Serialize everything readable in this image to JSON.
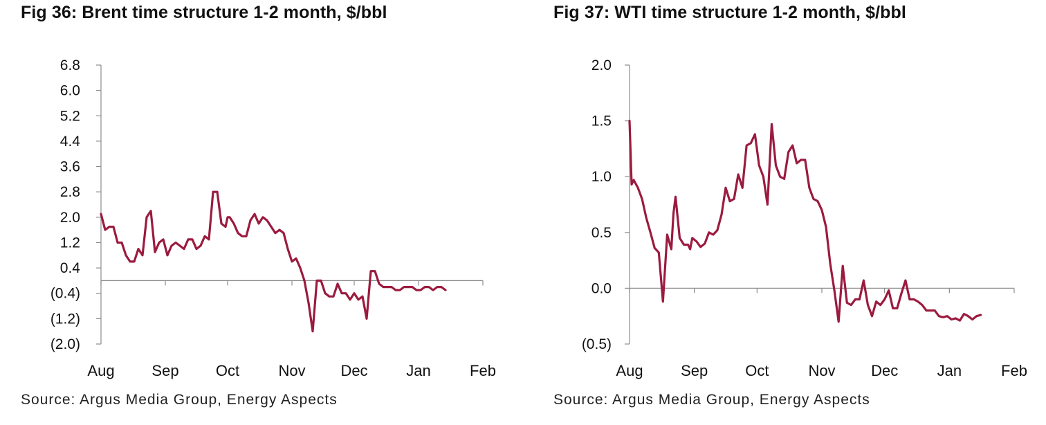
{
  "figures": [
    {
      "title": "Fig 36:  Brent time structure 1-2 month, $/bbl",
      "source": "Source: Argus Media Group, Energy Aspects"
    },
    {
      "title": "Fig 37:  WTI time structure 1-2 month, $/bbl",
      "source": "Source: Argus Media Group, Energy Aspects"
    }
  ],
  "chart_data": [
    {
      "type": "line",
      "title": "Fig 36:  Brent time structure 1-2 month, $/bbl",
      "xlabel": "",
      "ylabel": "",
      "x_tick_labels": [
        "Aug",
        "Sep",
        "Oct",
        "Nov",
        "Dec",
        "Jan",
        "Feb"
      ],
      "y_ticks": [
        6.8,
        6.0,
        5.2,
        4.4,
        3.6,
        2.8,
        2.0,
        1.2,
        0.4,
        -0.4,
        -1.2,
        -2.0
      ],
      "y_tick_labels": [
        "6.8",
        "6.0",
        "5.2",
        "4.4",
        "3.6",
        "2.8",
        "2.0",
        "1.2",
        "0.4",
        "(0.4)",
        "(1.2)",
        "(2.0)"
      ],
      "ylim": [
        -2.0,
        6.8
      ],
      "xlim": [
        "Aug",
        "Feb"
      ],
      "line_color": "#9b1b3f",
      "grid": false,
      "series": [
        {
          "x": [
            "Aug 1",
            "Aug 3",
            "Aug 5",
            "Aug 7",
            "Aug 9",
            "Aug 11",
            "Aug 13",
            "Aug 15",
            "Aug 17",
            "Aug 19",
            "Aug 21",
            "Aug 23",
            "Aug 25",
            "Aug 27",
            "Aug 29",
            "Aug 31",
            "Sep 2",
            "Sep 4",
            "Sep 6",
            "Sep 8",
            "Sep 10",
            "Sep 12",
            "Sep 14",
            "Sep 16",
            "Sep 18",
            "Sep 20",
            "Sep 22",
            "Sep 24",
            "Sep 26",
            "Sep 28",
            "Sep 30",
            "Oct 1",
            "Oct 2",
            "Oct 4",
            "Oct 6",
            "Oct 8",
            "Oct 10",
            "Oct 12",
            "Oct 14",
            "Oct 16",
            "Oct 18",
            "Oct 20",
            "Oct 22",
            "Oct 24",
            "Oct 26",
            "Oct 28",
            "Oct 30",
            "Nov 1",
            "Nov 3",
            "Nov 5",
            "Nov 7",
            "Nov 9",
            "Nov 11",
            "Nov 13",
            "Nov 15",
            "Nov 17",
            "Nov 19",
            "Nov 21",
            "Nov 23",
            "Nov 25",
            "Nov 27",
            "Nov 29",
            "Dec 1",
            "Dec 3",
            "Dec 5",
            "Dec 7",
            "Dec 9",
            "Dec 11",
            "Dec 13",
            "Dec 15",
            "Dec 17",
            "Dec 19",
            "Dec 21",
            "Dec 23",
            "Dec 25",
            "Dec 27",
            "Dec 29",
            "Dec 31",
            "Jan 2",
            "Jan 4",
            "Jan 6",
            "Jan 8",
            "Jan 10",
            "Jan 12",
            "Jan 14"
          ],
          "y": [
            2.1,
            1.6,
            1.7,
            1.7,
            1.2,
            1.2,
            0.8,
            0.6,
            0.6,
            1.0,
            0.8,
            2.0,
            2.2,
            0.9,
            1.2,
            1.3,
            0.8,
            1.1,
            1.2,
            1.1,
            1.0,
            1.3,
            1.3,
            1.0,
            1.1,
            1.4,
            1.3,
            2.8,
            2.8,
            1.8,
            1.7,
            2.0,
            2.0,
            1.8,
            1.5,
            1.4,
            1.4,
            1.9,
            2.1,
            1.8,
            2.0,
            1.9,
            1.7,
            1.5,
            1.6,
            1.5,
            1.0,
            0.6,
            0.7,
            0.4,
            0.0,
            -0.7,
            -1.6,
            0.0,
            0.0,
            -0.4,
            -0.5,
            -0.5,
            -0.1,
            -0.4,
            -0.4,
            -0.6,
            -0.4,
            -0.6,
            -0.5,
            -1.2,
            0.3,
            0.3,
            -0.1,
            -0.2,
            -0.2,
            -0.2,
            -0.3,
            -0.3,
            -0.2,
            -0.2,
            -0.2,
            -0.3,
            -0.3,
            -0.2,
            -0.2,
            -0.3,
            -0.2,
            -0.2,
            -0.3
          ]
        }
      ]
    },
    {
      "type": "line",
      "title": "Fig 37:  WTI time structure 1-2 month, $/bbl",
      "xlabel": "",
      "ylabel": "",
      "x_tick_labels": [
        "Aug",
        "Sep",
        "Oct",
        "Nov",
        "Dec",
        "Jan",
        "Feb"
      ],
      "y_ticks": [
        2.0,
        1.5,
        1.0,
        0.5,
        0.0,
        -0.5
      ],
      "y_tick_labels": [
        "2.0",
        "1.5",
        "1.0",
        "0.5",
        "0.0",
        "(0.5)"
      ],
      "ylim": [
        -0.5,
        2.0
      ],
      "xlim": [
        "Aug",
        "Feb"
      ],
      "line_color": "#9b1b3f",
      "grid": false,
      "series": [
        {
          "x": [
            "Aug 1",
            "Aug 2",
            "Aug 3",
            "Aug 5",
            "Aug 7",
            "Aug 9",
            "Aug 11",
            "Aug 13",
            "Aug 15",
            "Aug 17",
            "Aug 19",
            "Aug 21",
            "Aug 22",
            "Aug 23",
            "Aug 25",
            "Aug 27",
            "Aug 29",
            "Aug 30",
            "Aug 31",
            "Sep 2",
            "Sep 4",
            "Sep 6",
            "Sep 8",
            "Sep 10",
            "Sep 12",
            "Sep 14",
            "Sep 16",
            "Sep 18",
            "Sep 20",
            "Sep 22",
            "Sep 24",
            "Sep 26",
            "Sep 28",
            "Sep 30",
            "Oct 2",
            "Oct 4",
            "Oct 6",
            "Oct 8",
            "Oct 10",
            "Oct 12",
            "Oct 14",
            "Oct 16",
            "Oct 18",
            "Oct 20",
            "Oct 22",
            "Oct 24",
            "Oct 26",
            "Oct 28",
            "Oct 30",
            "Nov 1",
            "Nov 3",
            "Nov 5",
            "Nov 7",
            "Nov 9",
            "Nov 11",
            "Nov 13",
            "Nov 15",
            "Nov 17",
            "Nov 19",
            "Nov 21",
            "Nov 23",
            "Nov 25",
            "Nov 27",
            "Nov 29",
            "Dec 1",
            "Dec 3",
            "Dec 5",
            "Dec 7",
            "Dec 9",
            "Dec 11",
            "Dec 13",
            "Dec 15",
            "Dec 17",
            "Dec 19",
            "Dec 21",
            "Dec 23",
            "Dec 25",
            "Dec 27",
            "Dec 29",
            "Dec 31",
            "Jan 2",
            "Jan 4",
            "Jan 6",
            "Jan 8",
            "Jan 10",
            "Jan 12",
            "Jan 14",
            "Jan 16"
          ],
          "y": [
            1.5,
            0.93,
            0.97,
            0.9,
            0.8,
            0.63,
            0.5,
            0.36,
            0.32,
            -0.12,
            0.48,
            0.35,
            0.67,
            0.82,
            0.45,
            0.39,
            0.39,
            0.35,
            0.45,
            0.42,
            0.37,
            0.4,
            0.5,
            0.48,
            0.52,
            0.66,
            0.9,
            0.78,
            0.8,
            1.02,
            0.9,
            1.28,
            1.3,
            1.38,
            1.1,
            1.0,
            0.75,
            1.47,
            1.1,
            1.0,
            0.98,
            1.22,
            1.28,
            1.12,
            1.15,
            1.15,
            0.9,
            0.8,
            0.78,
            0.7,
            0.55,
            0.22,
            -0.02,
            -0.3,
            0.2,
            -0.13,
            -0.15,
            -0.1,
            -0.1,
            0.07,
            -0.15,
            -0.25,
            -0.12,
            -0.15,
            -0.1,
            -0.02,
            -0.18,
            -0.18,
            -0.05,
            0.07,
            -0.1,
            -0.1,
            -0.12,
            -0.15,
            -0.2,
            -0.2,
            -0.2,
            -0.25,
            -0.26,
            -0.25,
            -0.28,
            -0.27,
            -0.29,
            -0.23,
            -0.25,
            -0.28,
            -0.25,
            -0.24
          ]
        }
      ]
    }
  ]
}
